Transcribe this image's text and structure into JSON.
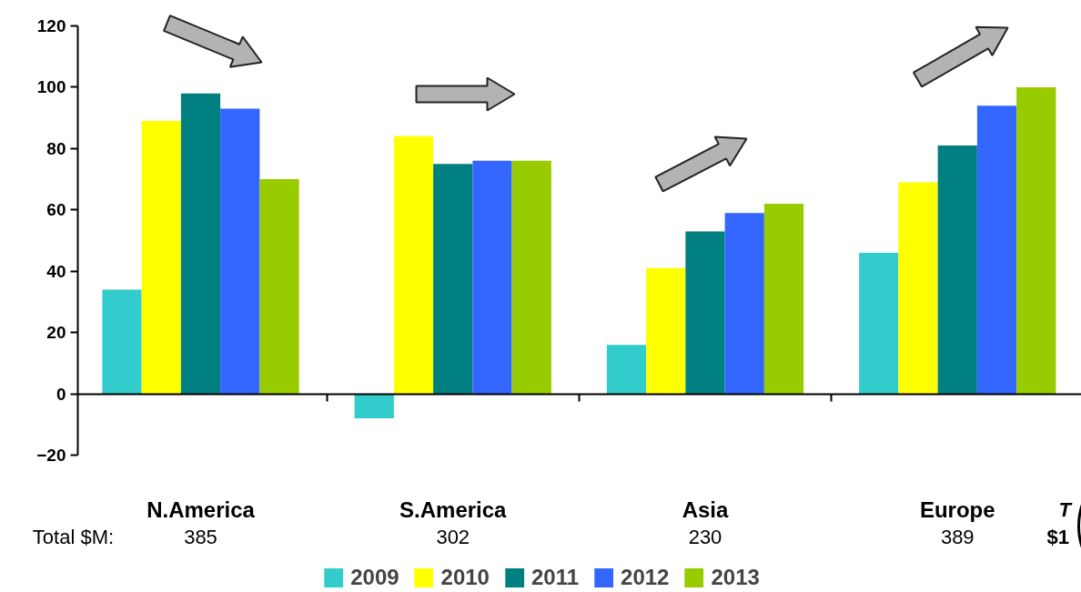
{
  "chart_data": {
    "type": "bar",
    "categories": [
      "N.America",
      "S.America",
      "Asia",
      "Europe"
    ],
    "series": [
      {
        "name": "2009",
        "color": "#33cccc",
        "values": [
          34,
          -8,
          16,
          46
        ]
      },
      {
        "name": "2010",
        "color": "#ffff00",
        "values": [
          89,
          84,
          41,
          69
        ]
      },
      {
        "name": "2011",
        "color": "#008080",
        "values": [
          98,
          75,
          53,
          81
        ]
      },
      {
        "name": "2012",
        "color": "#3366ff",
        "values": [
          93,
          76,
          59,
          94
        ]
      },
      {
        "name": "2013",
        "color": "#99cc00",
        "values": [
          70,
          76,
          62,
          100
        ]
      }
    ],
    "ylim": [
      -20,
      120
    ],
    "yticks": [
      -20,
      0,
      20,
      40,
      60,
      80,
      100,
      120
    ],
    "legend": "bottom",
    "annotations": [
      "Total $M:",
      "385",
      "302",
      "230",
      "389",
      "T",
      "$1"
    ]
  }
}
